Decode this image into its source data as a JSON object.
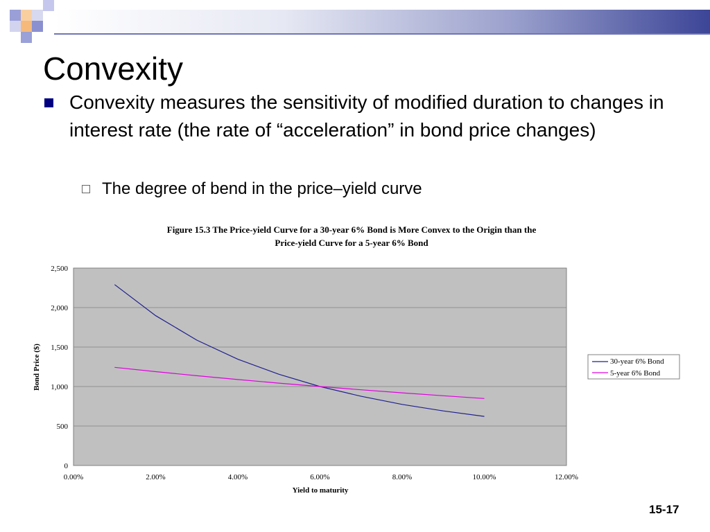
{
  "slide": {
    "title": "Convexity",
    "bullet": "Convexity measures the sensitivity of modified duration to changes in interest rate (the rate of “acceleration” in bond price changes)",
    "sub_bullet": "The degree of bend in the price–yield curve",
    "slide_number": "15-17"
  },
  "colors": {
    "accent": "#3c4597",
    "plot_bg": "#c0c0c0"
  },
  "chart_data": {
    "type": "line",
    "title_line1": "Figure 15.3  The Price-yield Curve for a 30-year 6% Bond is More Convex to the Origin than the",
    "title_line2": "Price-yield Curve for a 5-year 6% Bond",
    "xlabel": "Yield to maturity",
    "ylabel": "Bond Price ($)",
    "xlim": [
      0,
      0.12
    ],
    "ylim": [
      0,
      2500
    ],
    "x_ticks": [
      "0.00%",
      "2.00%",
      "4.00%",
      "6.00%",
      "8.00%",
      "10.00%",
      "12.00%"
    ],
    "y_ticks": [
      "0",
      "500",
      "1,000",
      "1,500",
      "2,000",
      "2,500"
    ],
    "grid": true,
    "legend_position": "right",
    "x": [
      0.01,
      0.02,
      0.03,
      0.04,
      0.05,
      0.06,
      0.07,
      0.08,
      0.09,
      0.1
    ],
    "series": [
      {
        "name": "30-year 6% Bond",
        "color": "#1f1f8f",
        "values": [
          2291,
          1897,
          1588,
          1346,
          1155,
          1000,
          876,
          774,
          691,
          622
        ]
      },
      {
        "name": "5-year 6% Bond",
        "color": "#e000e0",
        "values": [
          1243,
          1189,
          1137,
          1089,
          1043,
          1000,
          959,
          920,
          883,
          848
        ]
      }
    ]
  }
}
